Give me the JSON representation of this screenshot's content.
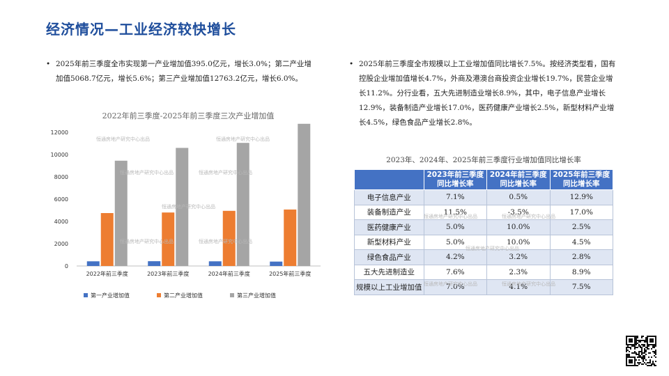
{
  "title": "经济情况—工业经济较快增长",
  "bullet_left": "2025年前三季度全市实现第一产业增加值395.0亿元，增长3.0%；第二产业增加值5068.7亿元，增长5.6%；第三产业增加值12763.2亿元，增长6.0%。",
  "bullet_right": "2025年前三季度全市规模以上工业增加值同比增长7.5%。按经济类型看，国有控股企业增加值增长4.7%，外商及港澳台商投资企业增长19.7%，民营企业增长11.2%。分行业看，五大先进制造业增长8.9%，其中，电子信息产业增长12.9%，装备制造产业增长17.0%，医药健康产业增长2.5%，新型材料产业增长4.5%，绿色食品产业增长2.8%。",
  "bullet_glyph": "•",
  "watermark": "恒通房地产研究中心出品",
  "colors": {
    "title": "#1f4e9c",
    "s1": "#4472c4",
    "s2": "#ed7d31",
    "s3": "#a5a5a5"
  },
  "chart_data": {
    "type": "bar",
    "title": "2022年前三季度-2025年前三季度三次产业增加值",
    "categories": [
      "2022年前三季度",
      "2023年前三季度",
      "2024年前三季度",
      "2025年前三季度"
    ],
    "series": [
      {
        "name": "第一产业增加值",
        "values": [
          420,
          430,
          420,
          395.0
        ]
      },
      {
        "name": "第二产业增加值",
        "values": [
          4750,
          4800,
          4950,
          5068.7
        ]
      },
      {
        "name": "第三产业增加值",
        "values": [
          9450,
          10600,
          11050,
          12763.2
        ]
      }
    ],
    "yticks": [
      "0",
      "2000",
      "4000",
      "6000",
      "8000",
      "10000",
      "12000"
    ],
    "ylim": [
      0,
      12000
    ],
    "legend": "bottom",
    "grid": false
  },
  "table": {
    "title": "2023年、2024年、2025年前三季度行业增加值同比增长率",
    "headers": [
      "",
      "2023年前三季度\n同比增长率",
      "2024年前三季度\n同比增长率",
      "2025年前三季度\n同比增长率"
    ],
    "rows": [
      [
        "电子信息产业",
        "7.1%",
        "0.5%",
        "12.9%"
      ],
      [
        "装备制造产业",
        "11.5%",
        "-3.5%",
        "17.0%"
      ],
      [
        "医药健康产业",
        "5.0%",
        "10.0%",
        "2.5%"
      ],
      [
        "新型材料产业",
        "5.0%",
        "10.0%",
        "4.5%"
      ],
      [
        "绿色食品产业",
        "4.2%",
        "3.2%",
        "2.8%"
      ],
      [
        "五大先进制造业",
        "7.6%",
        "2.3%",
        "8.9%"
      ],
      [
        "规模以上工业增加值",
        "7.0%",
        "4.1%",
        "7.5%"
      ]
    ]
  }
}
